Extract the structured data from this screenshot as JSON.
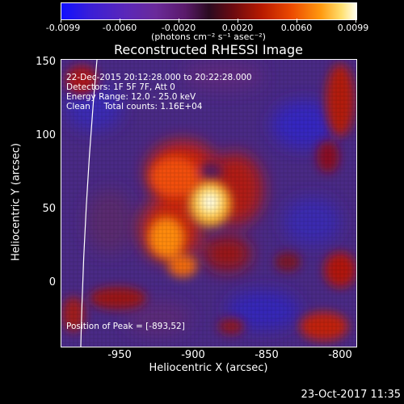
{
  "colorbar": {
    "tick_labels": [
      "-0.0099",
      "-0.0060",
      "-0.0020",
      "0.0020",
      "0.0060",
      "0.0099"
    ],
    "units": "(photons cm⁻² s⁻¹ asec⁻²)"
  },
  "title": "Reconstructed RHESSI Image",
  "annotations": {
    "time": "22-Dec-2015 20:12:28.000 to 20:22:28.000",
    "detectors": "Detectors: 1F 5F 7F, Att 0",
    "energy": "Energy Range: 12.0 - 25.0 keV",
    "clean": "Clean     Total counts: 1.16E+04",
    "peak": "Position of Peak = [-893,52]"
  },
  "axes": {
    "xlabel": "Heliocentric X (arcsec)",
    "ylabel": "Heliocentric Y (arcsec)",
    "x_ticks": [
      "-950",
      "-900",
      "-850",
      "-800"
    ],
    "y_ticks": [
      "150",
      "100",
      "50",
      "0"
    ],
    "xlim": [
      -985,
      -785
    ],
    "ylim": [
      -45,
      150
    ]
  },
  "peak_position": [
    -893,
    52
  ],
  "footer": {
    "timestamp": "23-Oct-2017 11:35"
  }
}
